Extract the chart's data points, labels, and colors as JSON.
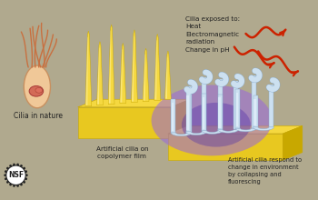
{
  "bg_color": "#b0a98e",
  "yellow_top": "#f5d840",
  "yellow_front": "#e8c820",
  "yellow_side": "#c8a800",
  "yellow_light": "#fff0a0",
  "cell_body": "#f0c898",
  "cell_outline": "#c89060",
  "cell_nucleus": "#d06050",
  "cilia_nat_color": "#c87040",
  "white_cilia": "#cce0f0",
  "white_cilia_hl": "#e8f4ff",
  "purple_glow": "#9966dd",
  "blue_glow": "#5533aa",
  "arrow_red": "#cc2200",
  "text_dark": "#222222",
  "nsf_dark": "#222222",
  "title_text": "Cilia exposed to:\nHeat\nElectromagnetic\nradiation\nChange in pH",
  "label_nature": "Cilia in nature",
  "label_artificial": "Artificial cilia on\ncopolymer film",
  "label_respond": "Artificial cilia respond to\nchange in environment\nby collapsing and\nfluorescing"
}
